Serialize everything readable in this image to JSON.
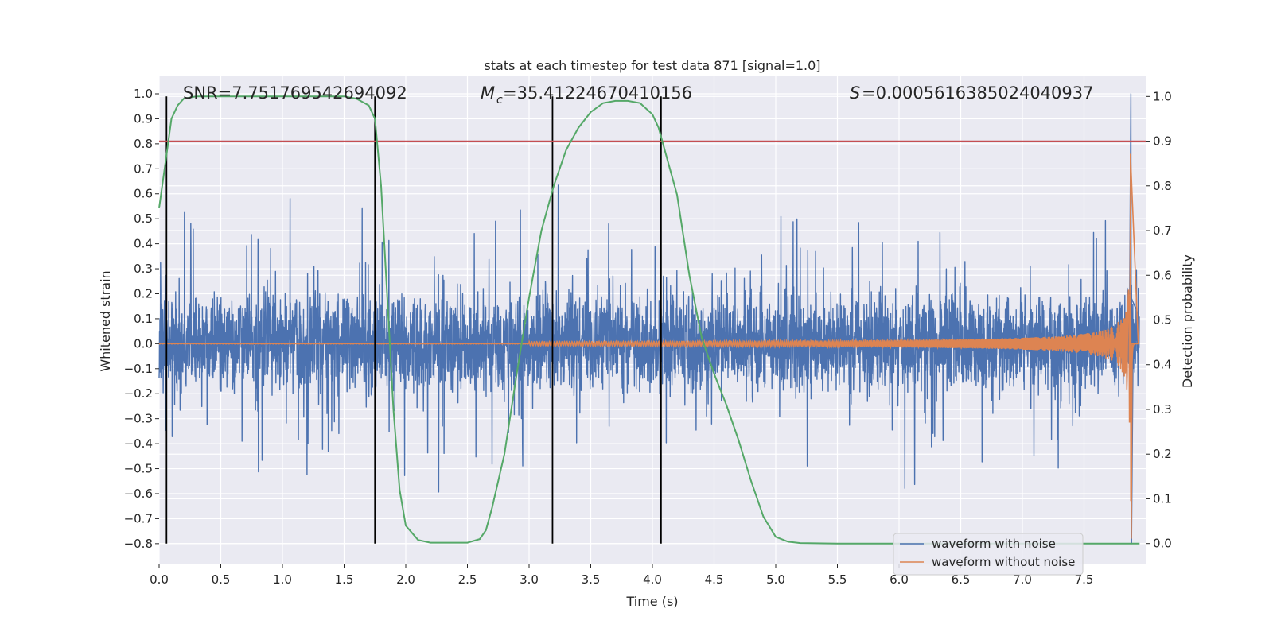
{
  "chart_data": {
    "type": "line",
    "title": "stats at each timestep for test data 871 [signal=1.0]",
    "xlabel": "Time (s)",
    "ylabel": "Whitened strain",
    "y2label": "Detection probability",
    "xlim": [
      0.0,
      8.0
    ],
    "ylim": [
      -0.88,
      1.07
    ],
    "y2lim": [
      -0.045,
      1.045
    ],
    "grid": true,
    "legend_position": "lower-right",
    "x_ticks": [
      0.0,
      0.5,
      1.0,
      1.5,
      2.0,
      2.5,
      3.0,
      3.5,
      4.0,
      4.5,
      5.0,
      5.5,
      6.0,
      6.5,
      7.0,
      7.5
    ],
    "y_ticks": [
      1.0,
      0.9,
      0.8,
      0.7,
      0.6,
      0.5,
      0.4,
      0.3,
      0.2,
      0.1,
      0.0,
      -0.1,
      -0.2,
      -0.3,
      -0.4,
      -0.5,
      -0.6,
      -0.7,
      -0.8
    ],
    "y2_ticks": [
      1.0,
      0.9,
      0.8,
      0.7,
      0.6,
      0.5,
      0.4,
      0.3,
      0.2,
      0.1,
      0.0
    ],
    "annotations": {
      "snr": "SNR=7.751769542694092",
      "mc_value": "=35.41224670410156",
      "s_value": "=0.0005616385024040937"
    },
    "threshold": 0.9,
    "vertical_lines_x": [
      0.06,
      1.75,
      3.19,
      4.07
    ],
    "series": [
      {
        "name": "waveform with noise",
        "color": "#4c72b0",
        "description_points": {
          "spike_at": 7.88,
          "spike_max": 1.0,
          "spike_min": -0.8
        }
      },
      {
        "name": "waveform without noise",
        "color": "#dd8452",
        "peak_time": 7.88,
        "peak_max": 0.76,
        "peak_min": -0.78
      },
      {
        "name": "detection probability",
        "color": "#55a868",
        "x": [
          0.0,
          0.05,
          0.1,
          0.15,
          0.2,
          0.3,
          0.5,
          1.0,
          1.5,
          1.6,
          1.7,
          1.75,
          1.8,
          1.85,
          1.9,
          1.95,
          2.0,
          2.1,
          2.2,
          2.5,
          2.6,
          2.65,
          2.7,
          2.8,
          2.9,
          3.0,
          3.1,
          3.2,
          3.3,
          3.4,
          3.5,
          3.6,
          3.7,
          3.8,
          3.9,
          4.0,
          4.05,
          4.1,
          4.2,
          4.3,
          4.4,
          4.5,
          4.6,
          4.7,
          4.8,
          4.9,
          5.0,
          5.1,
          5.2,
          5.5,
          6.0,
          7.0,
          7.5,
          7.88,
          7.95
        ],
        "y": [
          0.75,
          0.85,
          0.95,
          0.98,
          0.995,
          1.0,
          1.0,
          1.0,
          1.0,
          0.995,
          0.98,
          0.95,
          0.8,
          0.55,
          0.3,
          0.12,
          0.04,
          0.008,
          0.002,
          0.002,
          0.01,
          0.03,
          0.08,
          0.2,
          0.38,
          0.55,
          0.7,
          0.8,
          0.88,
          0.93,
          0.965,
          0.985,
          0.99,
          0.99,
          0.985,
          0.96,
          0.93,
          0.88,
          0.78,
          0.6,
          0.46,
          0.38,
          0.31,
          0.23,
          0.14,
          0.06,
          0.015,
          0.004,
          0.001,
          0.0,
          0.0,
          0.0,
          0.0,
          0.0,
          0.0
        ]
      }
    ]
  }
}
